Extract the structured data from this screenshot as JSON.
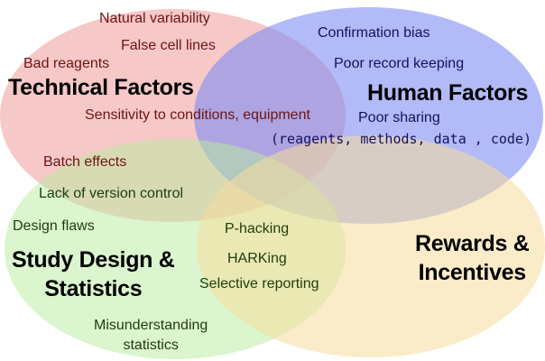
{
  "colors": {
    "technical": "#ef9a9a",
    "human": "#7f8cf2",
    "study": "#b8eb9e",
    "rewards": "#f5dc9c",
    "technical_text": "#6e1414",
    "human_text": "#12125e",
    "study_text": "#1d3d0e",
    "rewards_text": "#000000"
  },
  "sets": {
    "technical": {
      "title": "Technical Factors",
      "items": [
        "Natural variability",
        "False cell lines",
        "Bad reagents",
        "Sensitivity to conditions, equipment",
        "Batch effects"
      ]
    },
    "human": {
      "title": "Human Factors",
      "items": [
        "Confirmation bias",
        "Poor record keeping",
        "Poor sharing",
        "(reagents, methods, data , code)"
      ]
    },
    "study": {
      "title_line1": "Study Design &",
      "title_line2": "Statistics",
      "items": [
        "Lack of version control",
        "Design flaws",
        "P-hacking",
        "HARKing",
        "Selective reporting",
        "Misunderstanding",
        "statistics"
      ]
    },
    "rewards": {
      "title_line1": "Rewards &",
      "title_line2": "Incentives"
    }
  }
}
